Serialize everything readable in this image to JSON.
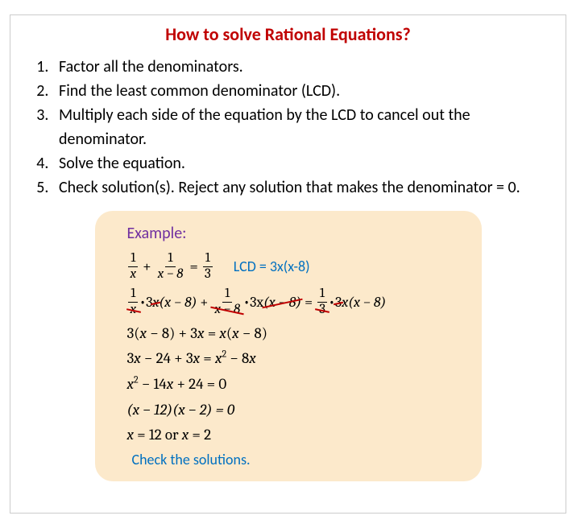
{
  "title": "How to solve Rational Equations?",
  "steps": [
    "Factor all the denominators.",
    "Find the least common denominator (LCD).",
    "Multiply each side of the equation by the LCD to cancel out the denominator.",
    "Solve the equation.",
    "Check solution(s). Reject any solution that makes the denominator = 0."
  ],
  "example": {
    "heading": "Example:",
    "lcd_label": "LCD = 3x(x-8)",
    "eq1": {
      "f1_num": "1",
      "f1_den": "x",
      "plus": "+",
      "f2_num": "1",
      "f2_den": "x − 8",
      "eq": "=",
      "f3_num": "1",
      "f3_den": "3"
    },
    "eq2": {
      "f1_num": "1",
      "f1_den": "x",
      "dot": "•",
      "t1a": "3",
      "t1b": "x",
      "t1c": "(x − 8)",
      "plus": "+",
      "f2_num": "1",
      "f2_den": "x − 8",
      "t2a": "3x",
      "t2b": "(x − 8)",
      "eq": "=",
      "f3_num": "1",
      "f3_den": "3",
      "t3a": "3",
      "t3b": "x(x − 8)"
    },
    "line3": "3(x − 8) + 3x = x(x − 8)",
    "line4_a": "3x − 24 + 3x = x",
    "line4_sup": "2",
    "line4_b": " − 8x",
    "line5_a": "x",
    "line5_sup": "2",
    "line5_b": " − 14x + 24 = 0",
    "line6": "(x − 12)(x − 2) = 0",
    "line7": "x = 12  or x = 2",
    "check": "Check the solutions."
  },
  "colors": {
    "title": "#c00000",
    "example_bg": "#fce9cb",
    "example_heading": "#7030a0",
    "lcd_blue": "#0070c0",
    "strike": "#c00000"
  }
}
